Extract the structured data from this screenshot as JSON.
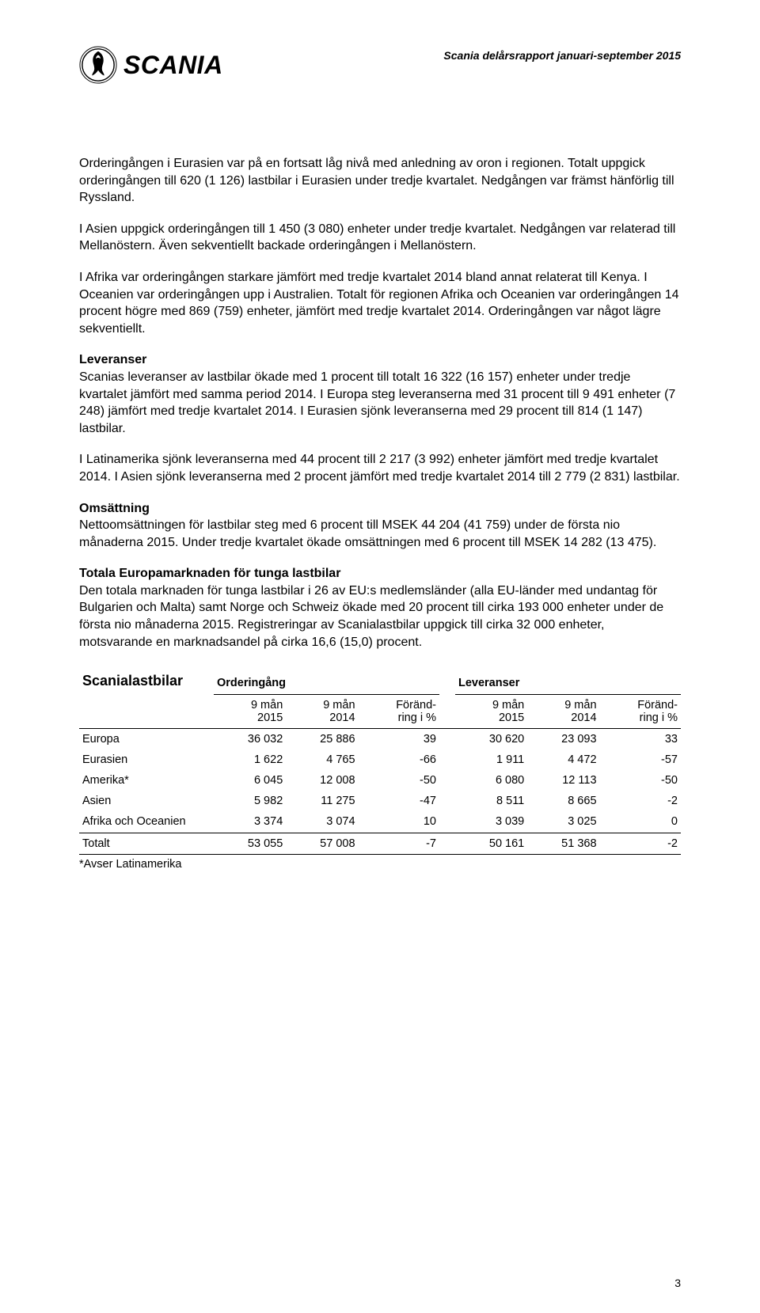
{
  "header": {
    "logo_text": "SCANIA",
    "doc_title": "Scania delårsrapport januari-september 2015"
  },
  "paras": {
    "p1": "Orderingången i Eurasien var på en fortsatt låg nivå med anledning av oron i regionen. Totalt uppgick orderingången till 620 (1 126) lastbilar i Eurasien under tredje kvartalet. Nedgången var främst hänförlig till Ryssland.",
    "p2": "I Asien uppgick orderingången till 1 450 (3 080) enheter under tredje kvartalet. Nedgången var relaterad till Mellanöstern. Även sekventiellt backade orderingången i Mellanöstern.",
    "p3": "I Afrika var orderingången starkare jämfört med tredje kvartalet 2014 bland annat relaterat till Kenya. I Oceanien var orderingången upp i Australien. Totalt för regionen Afrika och Oceanien var orderingången 14 procent högre med 869 (759) enheter, jämfört med tredje kvartalet 2014. Orderingången var något lägre sekventiellt.",
    "h_lev": "Leveranser",
    "p4": "Scanias leveranser av lastbilar ökade med 1 procent till totalt 16 322 (16 157) enheter under tredje kvartalet jämfört med samma period 2014. I Europa steg leveranserna med 31 procent till 9 491 enheter (7 248) jämfört med tredje kvartalet 2014. I Eurasien sjönk leveranserna med 29 procent till 814 (1 147) lastbilar.",
    "p5": "I Latinamerika sjönk leveranserna med 44 procent till 2 217 (3 992) enheter jämfört med tredje kvartalet 2014. I Asien sjönk leveranserna med 2 procent jämfört med tredje kvartalet 2014 till 2 779 (2 831) lastbilar.",
    "h_oms": "Omsättning",
    "p6": "Nettoomsättningen för lastbilar steg med 6 procent till MSEK 44 204 (41 759) under de första nio månaderna 2015. Under tredje kvartalet ökade omsättningen med 6 procent till MSEK 14 282 (13 475).",
    "h_eur": "Totala Europamarknaden för tunga lastbilar",
    "p7": "Den totala marknaden för tunga lastbilar i 26 av EU:s medlemsländer (alla EU-länder med undantag för Bulgarien och Malta) samt Norge och Schweiz ökade med 20 procent till cirka 193 000 enheter under de första nio månaderna 2015. Registreringar av Scanialastbilar uppgick till cirka 32 000 enheter, motsvarande en marknadsandel på cirka 16,6 (15,0) procent."
  },
  "table": {
    "title": "Scanialastbilar",
    "group1": "Orderingång",
    "group2": "Leveranser",
    "colhdr": {
      "c1a": "9 mån",
      "c1b": "2015",
      "c2a": "9 mån",
      "c2b": "2014",
      "c3a": "Föränd-",
      "c3b": "ring i %",
      "c4a": "9 mån",
      "c4b": "2015",
      "c5a": "9 mån",
      "c5b": "2014",
      "c6a": "Föränd-",
      "c6b": "ring i %"
    },
    "rows": [
      {
        "label": "Europa",
        "o15": "36 032",
        "o14": "25 886",
        "oc": "39",
        "l15": "30 620",
        "l14": "23 093",
        "lc": "33"
      },
      {
        "label": "Eurasien",
        "o15": "1 622",
        "o14": "4 765",
        "oc": "-66",
        "l15": "1 911",
        "l14": "4 472",
        "lc": "-57"
      },
      {
        "label": "Amerika*",
        "o15": "6 045",
        "o14": "12 008",
        "oc": "-50",
        "l15": "6 080",
        "l14": "12 113",
        "lc": "-50"
      },
      {
        "label": "Asien",
        "o15": "5 982",
        "o14": "11 275",
        "oc": "-47",
        "l15": "8 511",
        "l14": "8 665",
        "lc": "-2"
      },
      {
        "label": "Afrika och Oceanien",
        "o15": "3 374",
        "o14": "3 074",
        "oc": "10",
        "l15": "3 039",
        "l14": "3 025",
        "lc": "0"
      }
    ],
    "total": {
      "label": "Totalt",
      "o15": "53 055",
      "o14": "57 008",
      "oc": "-7",
      "l15": "50 161",
      "l14": "51 368",
      "lc": "-2"
    },
    "footnote": "*Avser Latinamerika"
  },
  "page_num": "3"
}
